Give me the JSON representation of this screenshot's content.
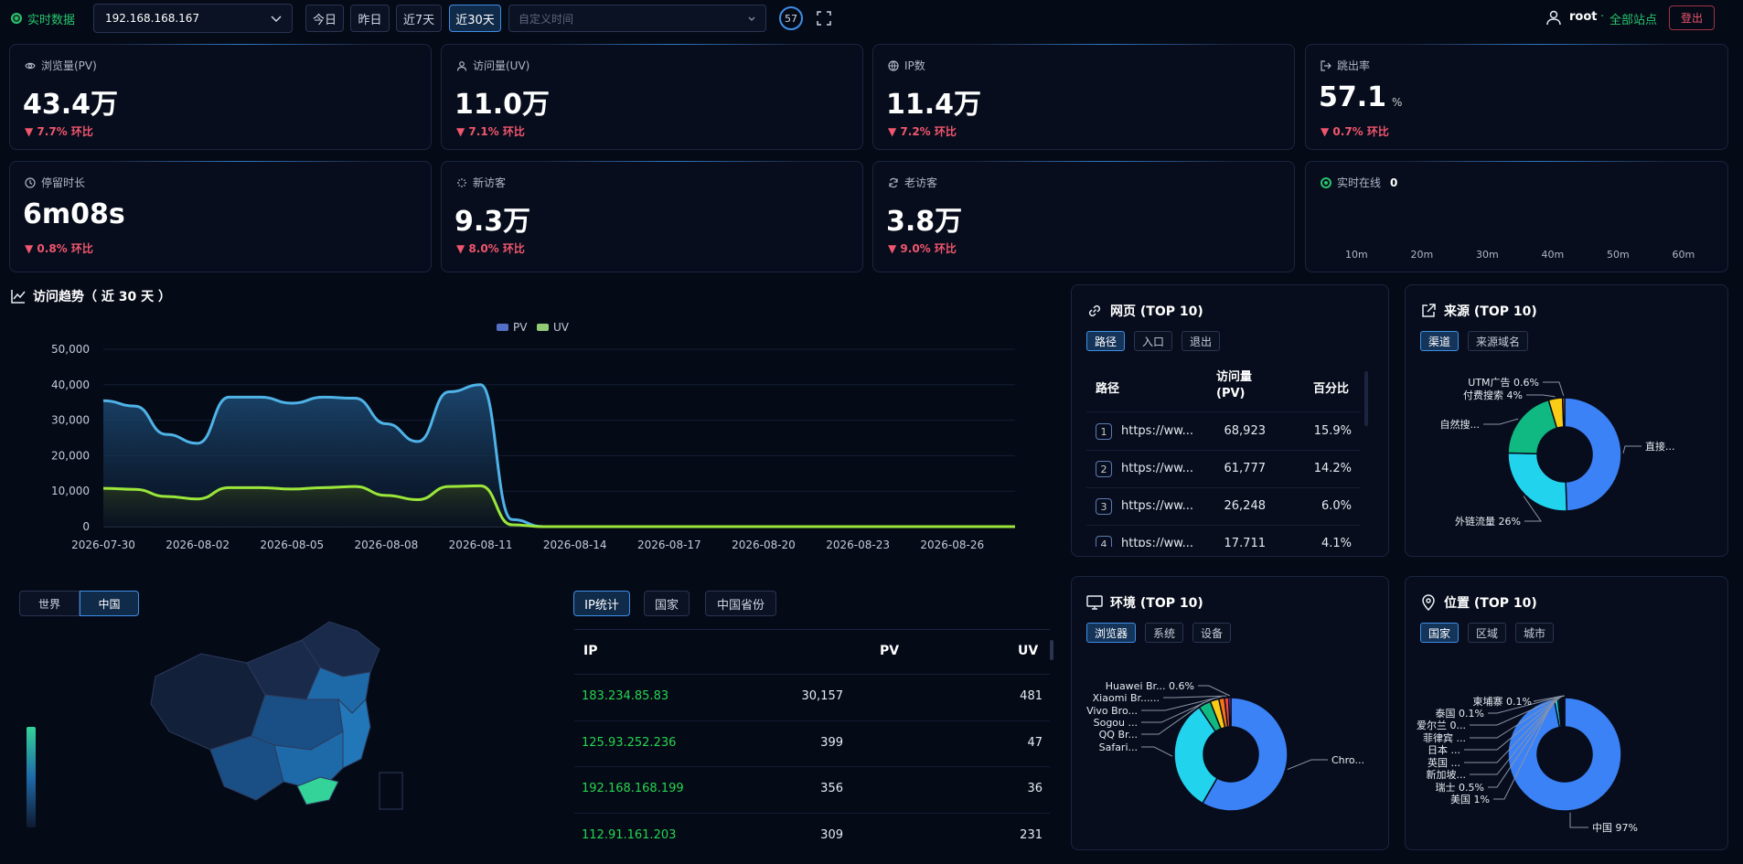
{
  "topbar": {
    "realtime_label": "实时数据",
    "server": "192.168.168.167",
    "ranges": [
      "今日",
      "昨日",
      "近7天",
      "近30天"
    ],
    "active_range": 3,
    "custom_time_placeholder": "自定义时间",
    "online_count": "57",
    "user": "root",
    "site_selector": "全部站点",
    "logout": "登出"
  },
  "stats": [
    {
      "label": "浏览量(PV)",
      "value": "43.4万",
      "unit": "",
      "change": "▼ 7.7% 环比",
      "icon": "eye-icon"
    },
    {
      "label": "访问量(UV)",
      "value": "11.0万",
      "unit": "",
      "change": "▼ 7.1% 环比",
      "icon": "user-icon"
    },
    {
      "label": "IP数",
      "value": "11.4万",
      "unit": "",
      "change": "▼ 7.2% 环比",
      "icon": "globe-icon"
    },
    {
      "label": "跳出率",
      "value": "57.1",
      "unit": "%",
      "change": "▼ 0.7% 环比",
      "icon": "exit-icon"
    },
    {
      "label": "停留时长",
      "value": "6m08s",
      "unit": "",
      "change": "▼ 0.8% 环比",
      "icon": "clock-icon"
    },
    {
      "label": "新访客",
      "value": "9.3万",
      "unit": "",
      "change": "▼ 8.0% 环比",
      "icon": "sparkle-icon"
    },
    {
      "label": "老访客",
      "value": "3.8万",
      "unit": "",
      "change": "▼ 9.0% 环比",
      "icon": "refresh-icon"
    }
  ],
  "online": {
    "label": "实时在线",
    "count": "0",
    "ticks": [
      "10m",
      "20m",
      "30m",
      "40m",
      "50m",
      "60m"
    ]
  },
  "trend": {
    "title": "访问趋势（ 近 30 天 ）",
    "legend": [
      "PV",
      "UV"
    ],
    "colors": {
      "pv": "#4fb3e8",
      "uv": "#9ae63a"
    }
  },
  "chart_data": {
    "type": "area",
    "x": [
      "2026-07-30",
      "2026-07-31",
      "2026-08-01",
      "2026-08-02",
      "2026-08-03",
      "2026-08-04",
      "2026-08-05",
      "2026-08-06",
      "2026-08-07",
      "2026-08-08",
      "2026-08-09",
      "2026-08-10",
      "2026-08-11",
      "2026-08-12",
      "2026-08-13",
      "2026-08-14",
      "2026-08-15",
      "2026-08-16",
      "2026-08-17",
      "2026-08-18",
      "2026-08-19",
      "2026-08-20",
      "2026-08-21",
      "2026-08-22",
      "2026-08-23",
      "2026-08-24",
      "2026-08-25",
      "2026-08-26",
      "2026-08-27",
      "2026-08-28"
    ],
    "x_tick_labels": [
      "2026-07-30",
      "2026-08-02",
      "2026-08-05",
      "2026-08-08",
      "2026-08-11",
      "2026-08-14",
      "2026-08-17",
      "2026-08-20",
      "2026-08-23",
      "2026-08-26"
    ],
    "series": [
      {
        "name": "PV",
        "values": [
          35500,
          34000,
          26000,
          23500,
          36500,
          36500,
          34800,
          36500,
          36200,
          29000,
          24000,
          38000,
          40000,
          2000,
          0,
          0,
          0,
          0,
          0,
          0,
          0,
          0,
          0,
          0,
          0,
          0,
          0,
          0,
          0,
          0
        ]
      },
      {
        "name": "UV",
        "values": [
          10800,
          10500,
          8500,
          7800,
          11000,
          11000,
          10600,
          11000,
          11300,
          8800,
          7600,
          11300,
          11500,
          500,
          0,
          0,
          0,
          0,
          0,
          0,
          0,
          0,
          0,
          0,
          0,
          0,
          0,
          0,
          0,
          0
        ]
      }
    ],
    "ylim": [
      0,
      50000
    ],
    "y_ticks": [
      "0",
      "10,000",
      "20,000",
      "30,000",
      "40,000",
      "50,000"
    ],
    "grid": true,
    "legend_position": "top-center"
  },
  "pages": {
    "title": "网页 (TOP 10)",
    "tabs": [
      "路径",
      "入口",
      "退出"
    ],
    "headers": [
      "路径",
      "访问量\n(PV)",
      "百分比"
    ],
    "rows": [
      {
        "rank": "1",
        "path": "https://ww...",
        "pv": "68,923",
        "pct": "15.9%"
      },
      {
        "rank": "2",
        "path": "https://ww...",
        "pv": "61,777",
        "pct": "14.2%"
      },
      {
        "rank": "3",
        "path": "https://ww...",
        "pv": "26,248",
        "pct": "6.0%"
      },
      {
        "rank": "4",
        "path": "https://ww...",
        "pv": "17,711",
        "pct": "4.1%"
      }
    ]
  },
  "sources": {
    "title": "来源 (TOP 10)",
    "tabs": [
      "渠道",
      "来源域名"
    ],
    "slices": [
      {
        "label": "直接...",
        "value": 49.4,
        "color": "#3b82f6"
      },
      {
        "label": "外链流量 26%",
        "value": 26,
        "color": "#22d3ee"
      },
      {
        "label": "自然搜...",
        "value": 20,
        "color": "#10b981"
      },
      {
        "label": "付费搜索 4%",
        "value": 4,
        "color": "#facc15"
      },
      {
        "label": "UTM广告 0.6%",
        "value": 0.6,
        "color": "#f97316"
      }
    ]
  },
  "env": {
    "title": "环境 (TOP 10)",
    "tabs": [
      "浏览器",
      "系统",
      "设备"
    ],
    "slices": [
      {
        "label": "Chro...",
        "value": 58,
        "color": "#3b82f6"
      },
      {
        "label": "Safari...",
        "value": 32,
        "color": "#22d3ee"
      },
      {
        "label": "QQ Br...",
        "value": 3.5,
        "color": "#10b981"
      },
      {
        "label": "Sogou ...",
        "value": 2.5,
        "color": "#facc15"
      },
      {
        "label": "Vivo Bro...",
        "value": 1.6,
        "color": "#f97316"
      },
      {
        "label": "Xiaomi Br......",
        "value": 1.2,
        "color": "#ef4444"
      },
      {
        "label": "Huawei Br... 0.6%",
        "value": 0.6,
        "color": "#a855f7"
      }
    ]
  },
  "location": {
    "title": "位置 (TOP 10)",
    "tabs": [
      "国家",
      "区域",
      "城市"
    ],
    "slices": [
      {
        "label": "中国 97%",
        "value": 97,
        "color": "#3b82f6"
      },
      {
        "label": "美国 1%",
        "value": 1,
        "color": "#22d3ee"
      },
      {
        "label": "瑞士 0.5%",
        "value": 0.5,
        "color": "#10b981"
      },
      {
        "label": "新加坡...",
        "value": 0.3,
        "color": "#facc15"
      },
      {
        "label": "英国 ...",
        "value": 0.3,
        "color": "#f97316"
      },
      {
        "label": "日本 ...",
        "value": 0.3,
        "color": "#ef4444"
      },
      {
        "label": "菲律宾 ...",
        "value": 0.2,
        "color": "#a855f7"
      },
      {
        "label": "爱尔兰 0...",
        "value": 0.2,
        "color": "#ec4899"
      },
      {
        "label": "泰国 0.1%",
        "value": 0.1,
        "color": "#84cc16"
      },
      {
        "label": "柬埔寨 0.1%",
        "value": 0.1,
        "color": "#94a3b8"
      }
    ]
  },
  "map": {
    "tabs": [
      "世界",
      "中国"
    ],
    "active": 1
  },
  "ip": {
    "tabs": [
      "IP统计",
      "国家",
      "中国省份"
    ],
    "headers": [
      "IP",
      "PV",
      "UV"
    ],
    "rows": [
      {
        "ip": "183.234.85.83",
        "pv": "30,157",
        "uv": "481"
      },
      {
        "ip": "125.93.252.236",
        "pv": "399",
        "uv": "47"
      },
      {
        "ip": "192.168.168.199",
        "pv": "356",
        "uv": "36"
      },
      {
        "ip": "112.91.161.203",
        "pv": "309",
        "uv": "231"
      }
    ]
  }
}
